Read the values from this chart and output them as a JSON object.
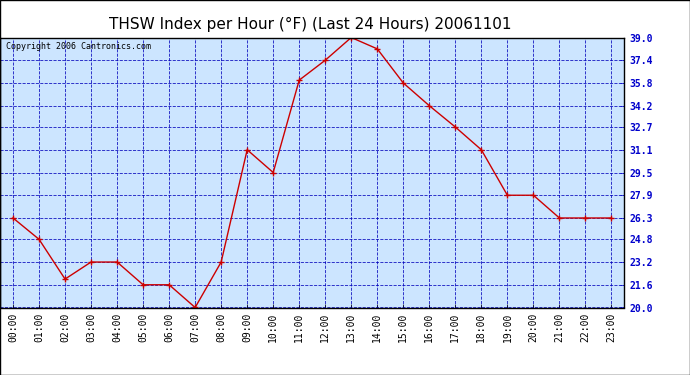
{
  "title": "THSW Index per Hour (°F) (Last 24 Hours) 20061101",
  "copyright": "Copyright 2006 Cantronics.com",
  "hours": [
    0,
    1,
    2,
    3,
    4,
    5,
    6,
    7,
    8,
    9,
    10,
    11,
    12,
    13,
    14,
    15,
    16,
    17,
    18,
    19,
    20,
    21,
    22,
    23
  ],
  "x_labels": [
    "00:00",
    "01:00",
    "02:00",
    "03:00",
    "04:00",
    "05:00",
    "06:00",
    "07:00",
    "08:00",
    "09:00",
    "10:00",
    "11:00",
    "12:00",
    "13:00",
    "14:00",
    "15:00",
    "16:00",
    "17:00",
    "18:00",
    "19:00",
    "20:00",
    "21:00",
    "22:00",
    "23:00"
  ],
  "values": [
    26.3,
    24.8,
    22.0,
    23.2,
    23.2,
    21.6,
    21.6,
    20.0,
    23.2,
    31.1,
    29.5,
    36.0,
    37.4,
    39.0,
    38.2,
    35.8,
    34.2,
    32.7,
    31.1,
    27.9,
    27.9,
    26.3,
    26.3,
    26.3
  ],
  "line_color": "#cc0000",
  "marker_color": "#cc0000",
  "outer_bg": "#ffffff",
  "plot_bg": "#cce5ff",
  "grid_color": "#0000bb",
  "title_color": "#000000",
  "border_color": "#000000",
  "ylim": [
    20.0,
    39.0
  ],
  "yticks": [
    20.0,
    21.6,
    23.2,
    24.8,
    26.3,
    27.9,
    29.5,
    31.1,
    32.7,
    34.2,
    35.8,
    37.4,
    39.0
  ],
  "title_fontsize": 11,
  "copyright_fontsize": 6,
  "tick_fontsize": 7
}
